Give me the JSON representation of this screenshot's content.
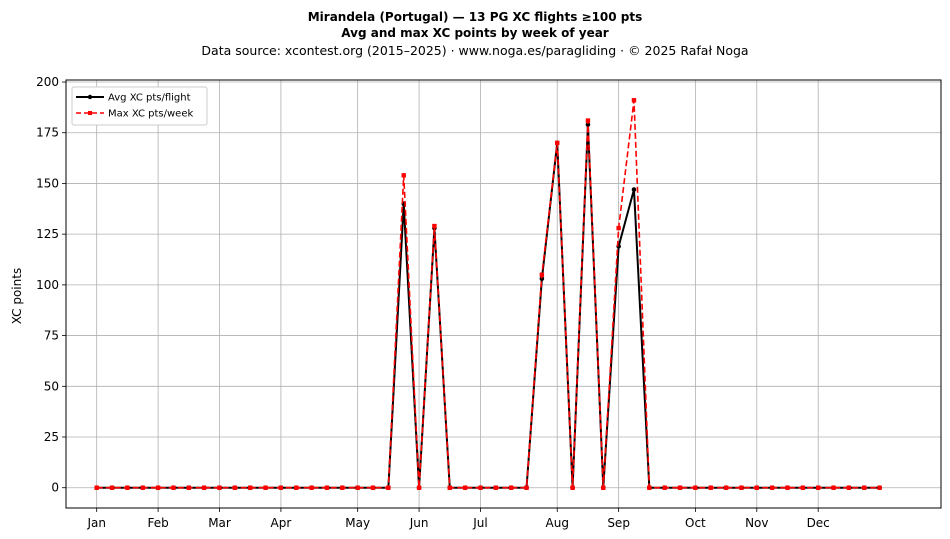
{
  "chart_data": {
    "type": "line",
    "title_line1": "Mirandela (Portugal)  —  13 PG XC flights ≥100 pts",
    "title_line2": "Avg and max XC points by week of year",
    "subtitle": "Data source: xcontest.org (2015–2025)  ·  www.noga.es/paragliding  ·  © 2025 Rafał Noga",
    "xlabel": "",
    "ylabel": "XC points",
    "ylim": [
      -10,
      201
    ],
    "xlim": [
      -2,
      55
    ],
    "yticks": [
      0,
      25,
      50,
      75,
      100,
      125,
      150,
      175,
      200
    ],
    "xticks": [
      {
        "label": "Jan",
        "week": 0
      },
      {
        "label": "Feb",
        "week": 4
      },
      {
        "label": "Mar",
        "week": 8
      },
      {
        "label": "Apr",
        "week": 12
      },
      {
        "label": "May",
        "week": 17
      },
      {
        "label": "Jun",
        "week": 21
      },
      {
        "label": "Jul",
        "week": 25
      },
      {
        "label": "Aug",
        "week": 30
      },
      {
        "label": "Sep",
        "week": 34
      },
      {
        "label": "Oct",
        "week": 39
      },
      {
        "label": "Nov",
        "week": 43
      },
      {
        "label": "Dec",
        "week": 47
      }
    ],
    "grid": true,
    "legend_position": "top-left",
    "x": [
      0,
      1,
      2,
      3,
      4,
      5,
      6,
      7,
      8,
      9,
      10,
      11,
      12,
      13,
      14,
      15,
      16,
      17,
      18,
      19,
      20,
      21,
      22,
      23,
      24,
      25,
      26,
      27,
      28,
      29,
      30,
      31,
      32,
      33,
      34,
      35,
      36,
      37,
      38,
      39,
      40,
      41,
      42,
      43,
      44,
      45,
      46,
      47,
      48,
      49,
      50,
      51
    ],
    "series": [
      {
        "name": "Avg XC pts/flight",
        "color": "#000000",
        "style": "solid",
        "marker": "circle",
        "values": [
          0,
          0,
          0,
          0,
          0,
          0,
          0,
          0,
          0,
          0,
          0,
          0,
          0,
          0,
          0,
          0,
          0,
          0,
          0,
          0,
          140,
          0,
          128,
          0,
          0,
          0,
          0,
          0,
          0,
          103,
          170,
          0,
          179,
          0,
          119,
          147,
          0,
          0,
          0,
          0,
          0,
          0,
          0,
          0,
          0,
          0,
          0,
          0,
          0,
          0,
          0,
          0
        ]
      },
      {
        "name": "Max XC pts/week",
        "color": "#ff0000",
        "style": "dashed",
        "marker": "square",
        "values": [
          0,
          0,
          0,
          0,
          0,
          0,
          0,
          0,
          0,
          0,
          0,
          0,
          0,
          0,
          0,
          0,
          0,
          0,
          0,
          0,
          154,
          0,
          129,
          0,
          0,
          0,
          0,
          0,
          0,
          105,
          170,
          0,
          181,
          0,
          128,
          191,
          0,
          0,
          0,
          0,
          0,
          0,
          0,
          0,
          0,
          0,
          0,
          0,
          0,
          0,
          0,
          0
        ]
      }
    ]
  }
}
